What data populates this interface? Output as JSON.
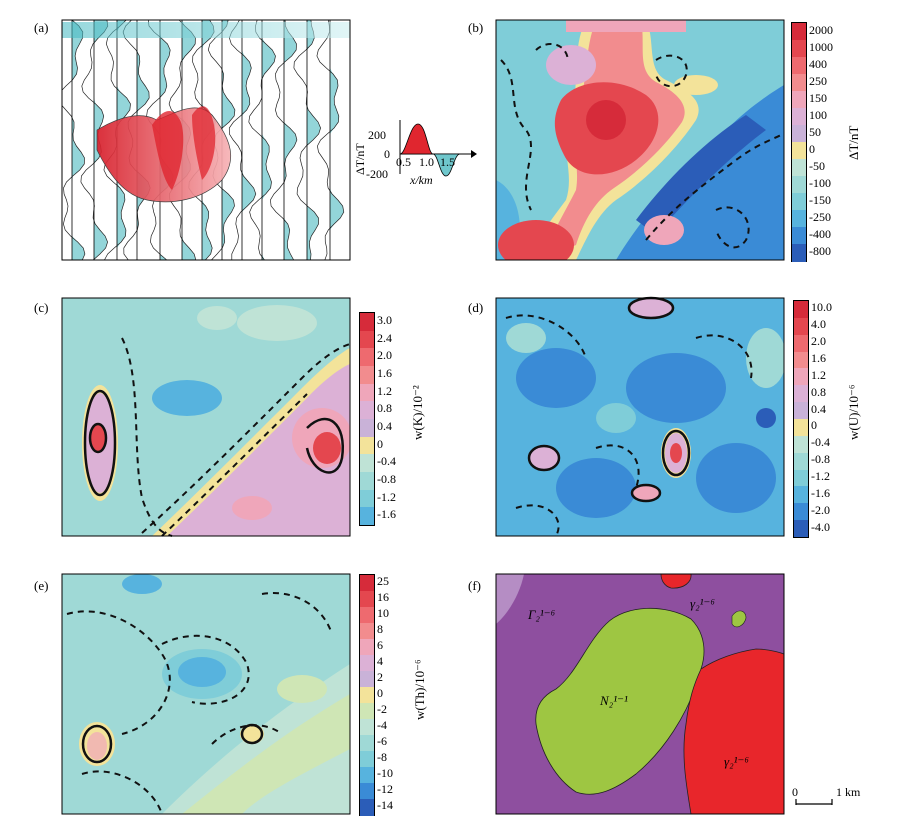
{
  "panels": {
    "a": {
      "label": "(a)"
    },
    "b": {
      "label": "(b)"
    },
    "c": {
      "label": "(c)"
    },
    "d": {
      "label": "(d)"
    },
    "e": {
      "label": "(e)"
    },
    "f": {
      "label": "(f)"
    }
  },
  "inset": {
    "y_ticks": [
      "200",
      "0",
      "-200"
    ],
    "x_ticks": [
      "0.5",
      "1.0",
      "1.5"
    ],
    "ylabel": "ΔT/nT",
    "xlabel": "x/km"
  },
  "colorbars": {
    "b": {
      "title": "ΔT/nT",
      "ticks": [
        "2000",
        "1000",
        "400",
        "250",
        "150",
        "100",
        "50",
        "0",
        "-50",
        "-100",
        "-150",
        "-250",
        "-400",
        "-800"
      ],
      "colors": [
        "#d62b3a",
        "#e4474f",
        "#ee6a6f",
        "#f28c8e",
        "#efa6ba",
        "#dcb1d6",
        "#c9b2d8",
        "#f3e39a",
        "#bfe3d6",
        "#9fd9d6",
        "#7fcdd8",
        "#57b3de",
        "#3a8bd6",
        "#2b5db8"
      ]
    },
    "c": {
      "title": "w(K)/10⁻²",
      "ticks": [
        "3.0",
        "2.4",
        "2.0",
        "1.6",
        "1.2",
        "0.8",
        "0.4",
        "0",
        "-0.4",
        "-0.8",
        "-1.2",
        "-1.6"
      ],
      "colors": [
        "#d62b3a",
        "#e4474f",
        "#ee6a6f",
        "#f28c8e",
        "#efa6ba",
        "#dcb1d6",
        "#c9b2d8",
        "#f3e39a",
        "#bfe3d6",
        "#9fd9d6",
        "#7fcdd8",
        "#57b3de"
      ]
    },
    "d": {
      "title": "w(U)/10⁻⁶",
      "ticks": [
        "10.0",
        "4.0",
        "2.0",
        "1.6",
        "1.2",
        "0.8",
        "0.4",
        "0",
        "-0.4",
        "-0.8",
        "-1.2",
        "-1.6",
        "-2.0",
        "-4.0"
      ],
      "colors": [
        "#d62b3a",
        "#e4474f",
        "#ee6a6f",
        "#f28c8e",
        "#efa6ba",
        "#dcb1d6",
        "#c9b2d8",
        "#f3e39a",
        "#bfe3d6",
        "#9fd9d6",
        "#7fcdd8",
        "#57b3de",
        "#3a8bd6",
        "#2b5db8"
      ]
    },
    "e": {
      "title": "w(Th)/10⁻⁶",
      "ticks": [
        "25",
        "16",
        "10",
        "8",
        "6",
        "4",
        "2",
        "0",
        "-2",
        "-4",
        "-6",
        "-8",
        "-10",
        "-12",
        "-14"
      ],
      "colors": [
        "#d62b3a",
        "#e4474f",
        "#ee6a6f",
        "#f28c8e",
        "#efa6ba",
        "#dcb1d6",
        "#c9b2d8",
        "#f3e39a",
        "#cfe6b5",
        "#bfe3d6",
        "#9fd9d6",
        "#7fcdd8",
        "#57b3de",
        "#3a8bd6",
        "#2b5db8"
      ]
    }
  },
  "geology": {
    "regions": [
      {
        "label": "Γ₂¹⁻⁶",
        "color": "#8e4f9f"
      },
      {
        "label": "N₂¹⁻¹",
        "color": "#9ec642"
      },
      {
        "label": "γ₂¹⁻⁶",
        "color": "#e8262b"
      },
      {
        "label": "γ₂¹⁻⁶",
        "color": "#e8262b"
      }
    ]
  },
  "scalebar": {
    "start": "0",
    "end": "1 km"
  }
}
